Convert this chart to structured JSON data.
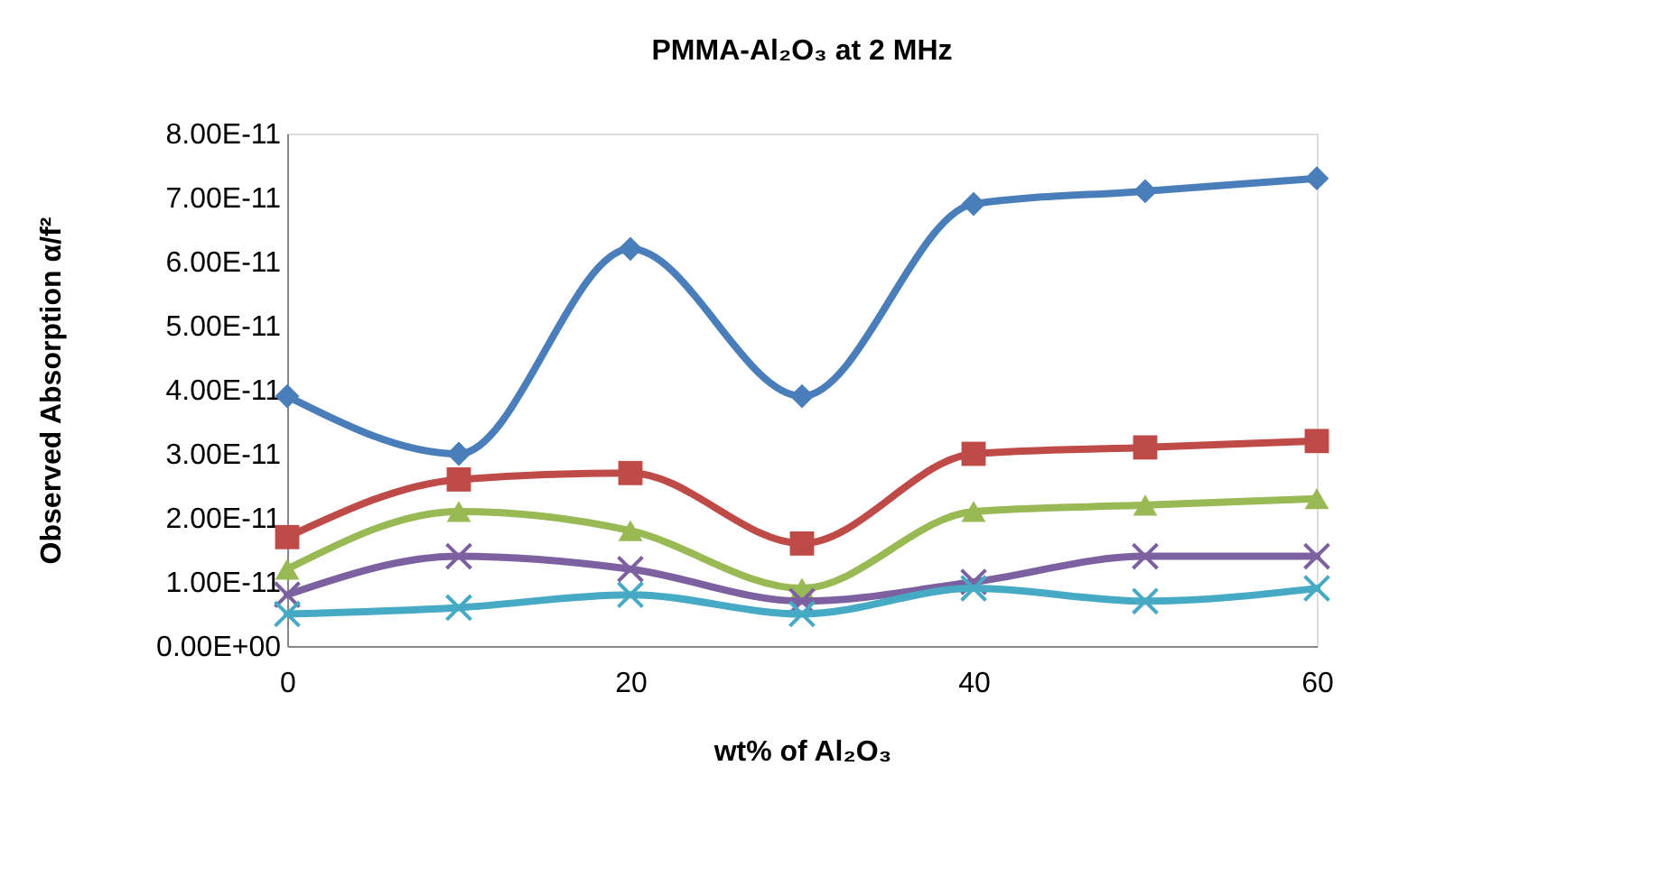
{
  "chart_data": {
    "type": "line",
    "title": "PMMA-Al₂O₃ at 2 MHz",
    "xlabel": "wt% of Al₂O₃",
    "ylabel": "Observed Absorption α/f²",
    "x": [
      0,
      10,
      20,
      30,
      40,
      50,
      60
    ],
    "series": [
      {
        "color": "#4a7ebb",
        "marker": "diamond",
        "values": [
          3.9e-11,
          3e-11,
          6.2e-11,
          3.9e-11,
          6.9e-11,
          7.1e-11,
          7.3e-11
        ]
      },
      {
        "color": "#be4b48",
        "marker": "square",
        "values": [
          1.7e-11,
          2.6e-11,
          2.7e-11,
          1.6e-11,
          3e-11,
          3.1e-11,
          3.2e-11
        ]
      },
      {
        "color": "#98b954",
        "marker": "triangle",
        "values": [
          1.2e-11,
          2.1e-11,
          1.8e-11,
          9e-12,
          2.1e-11,
          2.2e-11,
          2.3e-11
        ]
      },
      {
        "color": "#7d60a0",
        "marker": "cross",
        "values": [
          8e-12,
          1.4e-11,
          1.2e-11,
          7e-12,
          1e-11,
          1.4e-11,
          1.4e-11
        ]
      },
      {
        "color": "#46aac5",
        "marker": "cross",
        "values": [
          5e-12,
          6e-12,
          8e-12,
          5e-12,
          9e-12,
          7e-12,
          9e-12
        ]
      }
    ],
    "xlim": [
      0,
      60
    ],
    "xticks": [
      0,
      20,
      40,
      60
    ],
    "ylim": [
      0,
      8e-11
    ],
    "yticks": [
      {
        "value": 0,
        "label": "0.00E+00"
      },
      {
        "value": 1e-11,
        "label": "1.00E-11"
      },
      {
        "value": 2e-11,
        "label": "2.00E-11"
      },
      {
        "value": 3e-11,
        "label": "3.00E-11"
      },
      {
        "value": 4e-11,
        "label": "4.00E-11"
      },
      {
        "value": 5e-11,
        "label": "5.00E-11"
      },
      {
        "value": 6e-11,
        "label": "6.00E-11"
      },
      {
        "value": 7e-11,
        "label": "7.00E-11"
      },
      {
        "value": 8e-11,
        "label": "8.00E-11"
      }
    ],
    "grid": false,
    "legend": false,
    "line_style": "solid"
  }
}
